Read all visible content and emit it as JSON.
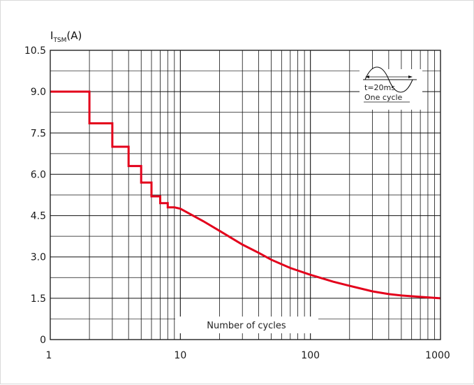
{
  "chart_data": {
    "type": "line",
    "title": "",
    "ylabel_main": "I",
    "ylabel_sub": "TSM",
    "ylabel_unit": "(A)",
    "xlabel": "Number of cycles",
    "x_scale": "log",
    "xlim": [
      1,
      1000
    ],
    "ylim": [
      0,
      10.5
    ],
    "x_ticks": [
      "1",
      "10",
      "100",
      "1000"
    ],
    "y_ticks": [
      "0",
      "1.5",
      "3.0",
      "4.5",
      "6.0",
      "7.5",
      "9.0",
      "10.5"
    ],
    "grid": true,
    "series": [
      {
        "color": "#e3001b",
        "points": [
          [
            1,
            9.0
          ],
          [
            2,
            9.0
          ],
          [
            2,
            7.85
          ],
          [
            3,
            7.85
          ],
          [
            3,
            7.0
          ],
          [
            4,
            7.0
          ],
          [
            4,
            6.3
          ],
          [
            5,
            6.3
          ],
          [
            5,
            5.7
          ],
          [
            6,
            5.7
          ],
          [
            6,
            5.2
          ],
          [
            7,
            5.2
          ],
          [
            7,
            4.95
          ],
          [
            8,
            4.95
          ],
          [
            8,
            4.8
          ],
          [
            9,
            4.8
          ],
          [
            10,
            4.75
          ],
          [
            15,
            4.3
          ],
          [
            20,
            3.95
          ],
          [
            30,
            3.45
          ],
          [
            40,
            3.15
          ],
          [
            50,
            2.9
          ],
          [
            70,
            2.6
          ],
          [
            100,
            2.35
          ],
          [
            150,
            2.1
          ],
          [
            200,
            1.95
          ],
          [
            300,
            1.75
          ],
          [
            400,
            1.65
          ],
          [
            500,
            1.6
          ],
          [
            700,
            1.55
          ],
          [
            1000,
            1.5
          ]
        ]
      }
    ],
    "inset": {
      "line1": "t=20ms",
      "line2": "One  cycle"
    }
  }
}
